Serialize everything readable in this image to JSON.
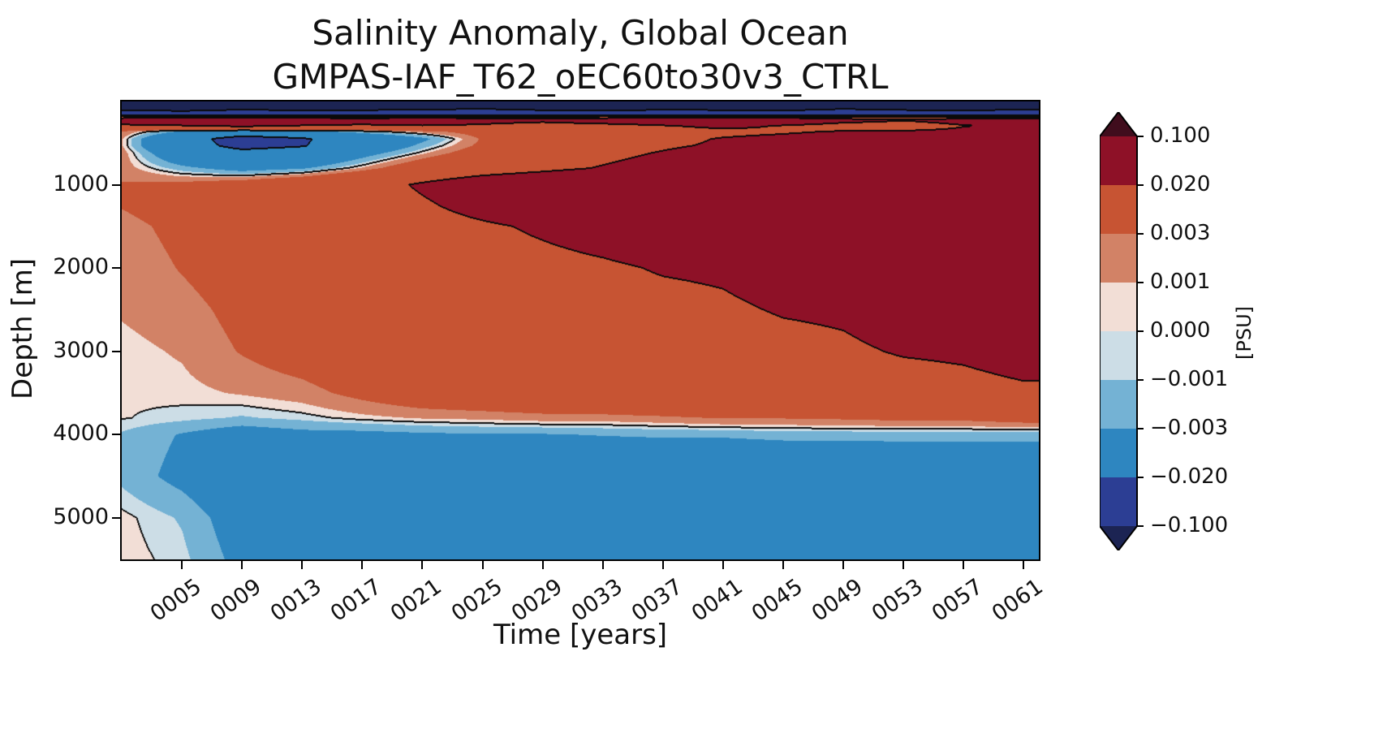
{
  "title": {
    "line1": "Salinity Anomaly, Global Ocean",
    "line2": "GMPAS-IAF_T62_oEC60to30v3_CTRL"
  },
  "axes": {
    "xlabel": "Time [years]",
    "ylabel": "Depth [m]",
    "x_ticks": [
      {
        "label": "0005",
        "value": 5
      },
      {
        "label": "0009",
        "value": 9
      },
      {
        "label": "0013",
        "value": 13
      },
      {
        "label": "0017",
        "value": 17
      },
      {
        "label": "0021",
        "value": 21
      },
      {
        "label": "0025",
        "value": 25
      },
      {
        "label": "0029",
        "value": 29
      },
      {
        "label": "0033",
        "value": 33
      },
      {
        "label": "0037",
        "value": 37
      },
      {
        "label": "0041",
        "value": 41
      },
      {
        "label": "0045",
        "value": 45
      },
      {
        "label": "0049",
        "value": 49
      },
      {
        "label": "0053",
        "value": 53
      },
      {
        "label": "0057",
        "value": 57
      },
      {
        "label": "0061",
        "value": 61
      }
    ],
    "y_ticks": [
      {
        "label": "1000",
        "value": 1000
      },
      {
        "label": "2000",
        "value": 2000
      },
      {
        "label": "3000",
        "value": 3000
      },
      {
        "label": "4000",
        "value": 4000
      },
      {
        "label": "5000",
        "value": 5000
      }
    ]
  },
  "colorbar": {
    "label": "[PSU]",
    "tick_labels": [
      "0.100",
      "0.020",
      "0.003",
      "0.001",
      "0.000",
      "−0.001",
      "−0.003",
      "−0.020",
      "−0.100"
    ]
  },
  "chart_data": {
    "type": "heatmap",
    "subtype": "filled-contour-depth-time-section",
    "title_lines": [
      "Salinity Anomaly, Global Ocean",
      "GMPAS-IAF_T62_oEC60to30v3_CTRL"
    ],
    "xlabel": "Time [years]",
    "ylabel": "Depth [m]",
    "units": "PSU",
    "x_min": 1,
    "x_max": 62,
    "depth_max": 5500,
    "y_inverted": true,
    "levels_psu": [
      -0.1,
      -0.02,
      -0.003,
      -0.001,
      0,
      0.001,
      0.003,
      0.02,
      0.1
    ],
    "contour_line_levels": [
      -0.1,
      -0.02,
      0,
      0.02,
      0.1
    ],
    "band_colors": [
      "#1c2453",
      "#2c3e94",
      "#2e86c0",
      "#74b2d4",
      "#ccdde6",
      "#f2ded6",
      "#d28266",
      "#c75433",
      "#8e1127",
      "#400d1d"
    ],
    "x_years": [
      1,
      5,
      9,
      13,
      17,
      21,
      25,
      29,
      33,
      37,
      41,
      45,
      49,
      53,
      57,
      61
    ],
    "y_depths_m": [
      0,
      80,
      170,
      220,
      290,
      360,
      450,
      530,
      620,
      800,
      1000,
      1250,
      1500,
      2000,
      2500,
      3000,
      3500,
      3800,
      4000,
      4500,
      5000,
      5500
    ],
    "values_psu": [
      [
        -0.16,
        -0.17,
        -0.15,
        -0.18,
        -0.16,
        -0.17,
        -0.14,
        -0.16,
        -0.18,
        -0.15,
        -0.17,
        -0.16,
        -0.14,
        -0.17,
        -0.16,
        -0.15
      ],
      [
        -0.13,
        -0.15,
        -0.12,
        -0.14,
        -0.13,
        -0.12,
        -0.11,
        -0.13,
        -0.15,
        -0.12,
        -0.13,
        -0.14,
        -0.11,
        -0.13,
        -0.14,
        -0.12
      ],
      [
        -0.01,
        -0.018,
        -0.015,
        -0.01,
        -0.018,
        -0.015,
        -0.01,
        -0.018,
        -0.01,
        -0.015,
        -0.018,
        -0.01,
        -0.015,
        -0.008,
        -0.01,
        -0.012
      ],
      [
        0.04,
        0.05,
        0.05,
        0.045,
        0.04,
        0.05,
        0.035,
        0.03,
        0.04,
        0.045,
        0.05,
        0.045,
        0.03,
        0.022,
        0.03,
        0.035
      ],
      [
        0.015,
        0.019,
        0.024,
        0.019,
        0.015,
        0.019,
        0.015,
        0.005,
        0.01,
        0.019,
        0.024,
        0.019,
        0.01,
        0.008,
        0.019,
        0.024
      ],
      [
        0.0028,
        -0.0034,
        -0.006,
        -0.004,
        -0.001,
        0.002,
        0.005,
        0.008,
        0.01,
        0.014,
        0.016,
        0.018,
        0.021,
        0.022,
        0.024,
        0.025
      ],
      [
        0.0012,
        -0.012,
        -0.028,
        -0.022,
        -0.01,
        -0.004,
        0.0034,
        0.008,
        0.012,
        0.016,
        0.021,
        0.024,
        0.028,
        0.03,
        0.03,
        0.03
      ],
      [
        0.0012,
        -0.012,
        -0.025,
        -0.021,
        -0.009,
        -0.002,
        0.004,
        0.01,
        0.013,
        0.018,
        0.022,
        0.026,
        0.03,
        0.032,
        0.032,
        0.032
      ],
      [
        0.002,
        -0.008,
        -0.015,
        -0.012,
        -0.005,
        0.0006,
        0.006,
        0.012,
        0.016,
        0.021,
        0.026,
        0.03,
        0.032,
        0.034,
        0.035,
        0.035
      ],
      [
        0.002,
        -0.002,
        -0.005,
        -0.0035,
        0.0012,
        0.007,
        0.012,
        0.016,
        0.021,
        0.026,
        0.03,
        0.034,
        0.036,
        0.04,
        0.04,
        0.04
      ],
      [
        0.0032,
        0.004,
        0.006,
        0.009,
        0.013,
        0.022,
        0.03,
        0.035,
        0.04,
        0.045,
        0.05,
        0.05,
        0.055,
        0.06,
        0.06,
        0.06
      ],
      [
        0.0032,
        0.005,
        0.007,
        0.009,
        0.012,
        0.018,
        0.025,
        0.03,
        0.035,
        0.04,
        0.045,
        0.05,
        0.05,
        0.055,
        0.06,
        0.06
      ],
      [
        0.002,
        0.004,
        0.006,
        0.008,
        0.01,
        0.014,
        0.018,
        0.022,
        0.026,
        0.03,
        0.035,
        0.04,
        0.045,
        0.05,
        0.05,
        0.05
      ],
      [
        0.0012,
        0.0032,
        0.005,
        0.007,
        0.009,
        0.012,
        0.014,
        0.016,
        0.018,
        0.021,
        0.022,
        0.026,
        0.03,
        0.035,
        0.04,
        0.045
      ],
      [
        0.0012,
        0.002,
        0.004,
        0.006,
        0.008,
        0.01,
        0.012,
        0.013,
        0.015,
        0.016,
        0.018,
        0.021,
        0.022,
        0.026,
        0.03,
        0.032
      ],
      [
        0.0005,
        0.0012,
        0.0032,
        0.005,
        0.007,
        0.009,
        0.01,
        0.011,
        0.012,
        0.013,
        0.014,
        0.016,
        0.018,
        0.021,
        0.022,
        0.025
      ],
      [
        0.0002,
        0.0005,
        0.0012,
        0.002,
        0.004,
        0.006,
        0.007,
        0.008,
        0.009,
        0.01,
        0.011,
        0.012,
        0.013,
        0.014,
        0.016,
        0.018
      ],
      [
        0.0001,
        -0.0005,
        -0.0012,
        -0.0005,
        0.0005,
        0.0012,
        0.0015,
        0.002,
        0.002,
        0.0025,
        0.0032,
        0.0032,
        0.0035,
        0.004,
        0.004,
        0.005
      ],
      [
        -0.0012,
        -0.0032,
        -0.005,
        -0.004,
        -0.004,
        -0.0035,
        -0.0032,
        -0.0032,
        -0.0028,
        -0.0025,
        -0.0025,
        -0.002,
        -0.002,
        -0.002,
        -0.002,
        -0.002
      ],
      [
        -0.0015,
        -0.004,
        -0.007,
        -0.008,
        -0.008,
        -0.008,
        -0.0085,
        -0.009,
        -0.009,
        -0.009,
        -0.009,
        -0.009,
        -0.0085,
        -0.008,
        -0.008,
        -0.008
      ],
      [
        0.0004,
        -0.0012,
        -0.005,
        -0.007,
        -0.008,
        -0.009,
        -0.009,
        -0.0095,
        -0.0095,
        -0.0095,
        -0.0095,
        -0.009,
        -0.009,
        -0.009,
        -0.0085,
        -0.008
      ],
      [
        0.0006,
        -0.0005,
        -0.004,
        -0.006,
        -0.007,
        -0.008,
        -0.0085,
        -0.009,
        -0.009,
        -0.009,
        -0.009,
        -0.0085,
        -0.0085,
        -0.008,
        -0.008,
        -0.0075
      ]
    ]
  }
}
